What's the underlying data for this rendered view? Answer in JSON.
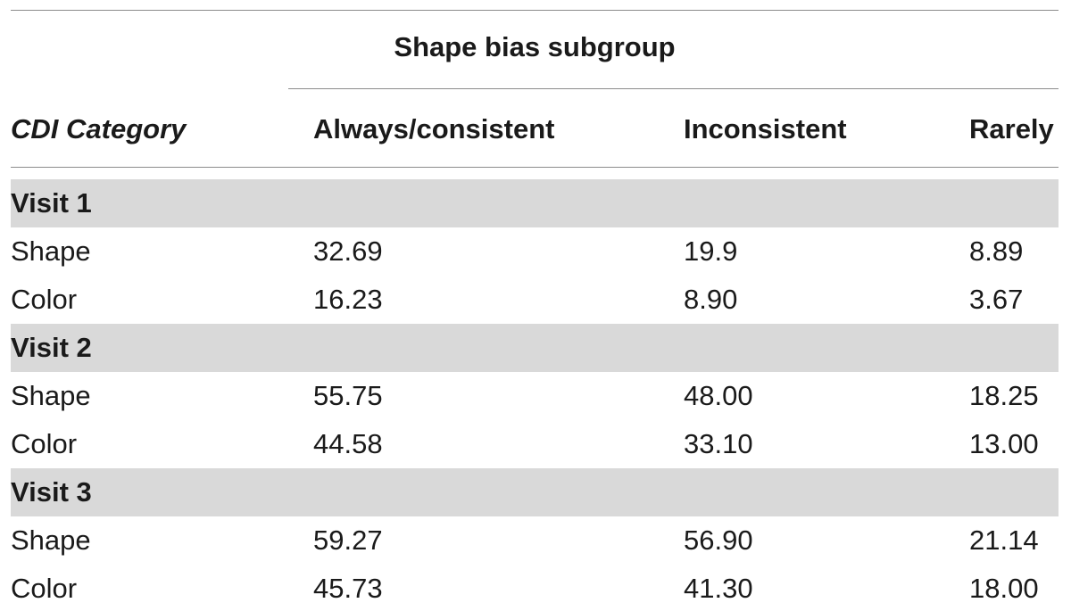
{
  "table": {
    "group_header": "Shape bias subgroup",
    "columns": [
      "CDI Category",
      "Always/consistent",
      "Inconsistent",
      "Rarely"
    ],
    "sections": [
      {
        "label": "Visit 1",
        "rows": [
          {
            "category": "Shape",
            "always": "32.69",
            "inconsistent": "19.9",
            "rarely": "8.89"
          },
          {
            "category": "Color",
            "always": "16.23",
            "inconsistent": "8.90",
            "rarely": "3.67"
          }
        ]
      },
      {
        "label": "Visit 2",
        "rows": [
          {
            "category": "Shape",
            "always": "55.75",
            "inconsistent": "48.00",
            "rarely": "18.25"
          },
          {
            "category": "Color",
            "always": "44.58",
            "inconsistent": "33.10",
            "rarely": "13.00"
          }
        ]
      },
      {
        "label": "Visit 3",
        "rows": [
          {
            "category": "Shape",
            "always": "59.27",
            "inconsistent": "56.90",
            "rarely": "21.14"
          },
          {
            "category": "Color",
            "always": "45.73",
            "inconsistent": "41.30",
            "rarely": "18.00"
          }
        ]
      }
    ]
  },
  "colors": {
    "band": "#d9d9d9",
    "rule": "#8c8c8c",
    "text": "#1a1a1a"
  }
}
